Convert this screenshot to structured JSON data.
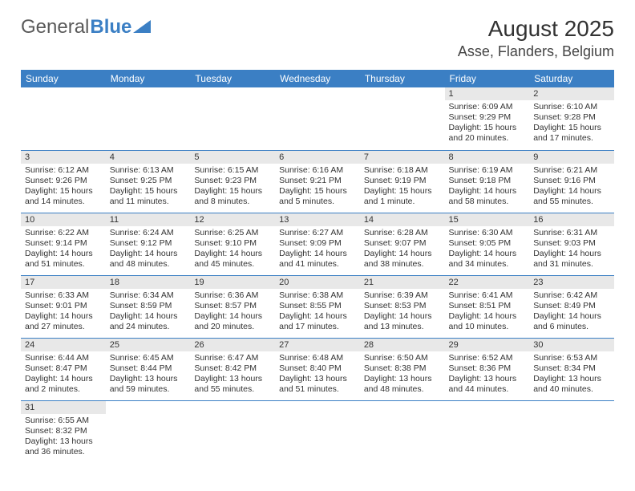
{
  "brand": {
    "part1": "General",
    "part2": "Blue"
  },
  "title": "August 2025",
  "location": "Asse, Flanders, Belgium",
  "colors": {
    "header_bg": "#3b7fc4",
    "header_text": "#ffffff",
    "day_bar_bg": "#e8e8e8",
    "row_border": "#3b7fc4",
    "text": "#333333",
    "page_bg": "#ffffff"
  },
  "weekdays": [
    "Sunday",
    "Monday",
    "Tuesday",
    "Wednesday",
    "Thursday",
    "Friday",
    "Saturday"
  ],
  "weeks": [
    [
      null,
      null,
      null,
      null,
      null,
      {
        "day": "1",
        "sunrise": "Sunrise: 6:09 AM",
        "sunset": "Sunset: 9:29 PM",
        "daylight": "Daylight: 15 hours and 20 minutes."
      },
      {
        "day": "2",
        "sunrise": "Sunrise: 6:10 AM",
        "sunset": "Sunset: 9:28 PM",
        "daylight": "Daylight: 15 hours and 17 minutes."
      }
    ],
    [
      {
        "day": "3",
        "sunrise": "Sunrise: 6:12 AM",
        "sunset": "Sunset: 9:26 PM",
        "daylight": "Daylight: 15 hours and 14 minutes."
      },
      {
        "day": "4",
        "sunrise": "Sunrise: 6:13 AM",
        "sunset": "Sunset: 9:25 PM",
        "daylight": "Daylight: 15 hours and 11 minutes."
      },
      {
        "day": "5",
        "sunrise": "Sunrise: 6:15 AM",
        "sunset": "Sunset: 9:23 PM",
        "daylight": "Daylight: 15 hours and 8 minutes."
      },
      {
        "day": "6",
        "sunrise": "Sunrise: 6:16 AM",
        "sunset": "Sunset: 9:21 PM",
        "daylight": "Daylight: 15 hours and 5 minutes."
      },
      {
        "day": "7",
        "sunrise": "Sunrise: 6:18 AM",
        "sunset": "Sunset: 9:19 PM",
        "daylight": "Daylight: 15 hours and 1 minute."
      },
      {
        "day": "8",
        "sunrise": "Sunrise: 6:19 AM",
        "sunset": "Sunset: 9:18 PM",
        "daylight": "Daylight: 14 hours and 58 minutes."
      },
      {
        "day": "9",
        "sunrise": "Sunrise: 6:21 AM",
        "sunset": "Sunset: 9:16 PM",
        "daylight": "Daylight: 14 hours and 55 minutes."
      }
    ],
    [
      {
        "day": "10",
        "sunrise": "Sunrise: 6:22 AM",
        "sunset": "Sunset: 9:14 PM",
        "daylight": "Daylight: 14 hours and 51 minutes."
      },
      {
        "day": "11",
        "sunrise": "Sunrise: 6:24 AM",
        "sunset": "Sunset: 9:12 PM",
        "daylight": "Daylight: 14 hours and 48 minutes."
      },
      {
        "day": "12",
        "sunrise": "Sunrise: 6:25 AM",
        "sunset": "Sunset: 9:10 PM",
        "daylight": "Daylight: 14 hours and 45 minutes."
      },
      {
        "day": "13",
        "sunrise": "Sunrise: 6:27 AM",
        "sunset": "Sunset: 9:09 PM",
        "daylight": "Daylight: 14 hours and 41 minutes."
      },
      {
        "day": "14",
        "sunrise": "Sunrise: 6:28 AM",
        "sunset": "Sunset: 9:07 PM",
        "daylight": "Daylight: 14 hours and 38 minutes."
      },
      {
        "day": "15",
        "sunrise": "Sunrise: 6:30 AM",
        "sunset": "Sunset: 9:05 PM",
        "daylight": "Daylight: 14 hours and 34 minutes."
      },
      {
        "day": "16",
        "sunrise": "Sunrise: 6:31 AM",
        "sunset": "Sunset: 9:03 PM",
        "daylight": "Daylight: 14 hours and 31 minutes."
      }
    ],
    [
      {
        "day": "17",
        "sunrise": "Sunrise: 6:33 AM",
        "sunset": "Sunset: 9:01 PM",
        "daylight": "Daylight: 14 hours and 27 minutes."
      },
      {
        "day": "18",
        "sunrise": "Sunrise: 6:34 AM",
        "sunset": "Sunset: 8:59 PM",
        "daylight": "Daylight: 14 hours and 24 minutes."
      },
      {
        "day": "19",
        "sunrise": "Sunrise: 6:36 AM",
        "sunset": "Sunset: 8:57 PM",
        "daylight": "Daylight: 14 hours and 20 minutes."
      },
      {
        "day": "20",
        "sunrise": "Sunrise: 6:38 AM",
        "sunset": "Sunset: 8:55 PM",
        "daylight": "Daylight: 14 hours and 17 minutes."
      },
      {
        "day": "21",
        "sunrise": "Sunrise: 6:39 AM",
        "sunset": "Sunset: 8:53 PM",
        "daylight": "Daylight: 14 hours and 13 minutes."
      },
      {
        "day": "22",
        "sunrise": "Sunrise: 6:41 AM",
        "sunset": "Sunset: 8:51 PM",
        "daylight": "Daylight: 14 hours and 10 minutes."
      },
      {
        "day": "23",
        "sunrise": "Sunrise: 6:42 AM",
        "sunset": "Sunset: 8:49 PM",
        "daylight": "Daylight: 14 hours and 6 minutes."
      }
    ],
    [
      {
        "day": "24",
        "sunrise": "Sunrise: 6:44 AM",
        "sunset": "Sunset: 8:47 PM",
        "daylight": "Daylight: 14 hours and 2 minutes."
      },
      {
        "day": "25",
        "sunrise": "Sunrise: 6:45 AM",
        "sunset": "Sunset: 8:44 PM",
        "daylight": "Daylight: 13 hours and 59 minutes."
      },
      {
        "day": "26",
        "sunrise": "Sunrise: 6:47 AM",
        "sunset": "Sunset: 8:42 PM",
        "daylight": "Daylight: 13 hours and 55 minutes."
      },
      {
        "day": "27",
        "sunrise": "Sunrise: 6:48 AM",
        "sunset": "Sunset: 8:40 PM",
        "daylight": "Daylight: 13 hours and 51 minutes."
      },
      {
        "day": "28",
        "sunrise": "Sunrise: 6:50 AM",
        "sunset": "Sunset: 8:38 PM",
        "daylight": "Daylight: 13 hours and 48 minutes."
      },
      {
        "day": "29",
        "sunrise": "Sunrise: 6:52 AM",
        "sunset": "Sunset: 8:36 PM",
        "daylight": "Daylight: 13 hours and 44 minutes."
      },
      {
        "day": "30",
        "sunrise": "Sunrise: 6:53 AM",
        "sunset": "Sunset: 8:34 PM",
        "daylight": "Daylight: 13 hours and 40 minutes."
      }
    ],
    [
      {
        "day": "31",
        "sunrise": "Sunrise: 6:55 AM",
        "sunset": "Sunset: 8:32 PM",
        "daylight": "Daylight: 13 hours and 36 minutes."
      },
      null,
      null,
      null,
      null,
      null,
      null
    ]
  ]
}
